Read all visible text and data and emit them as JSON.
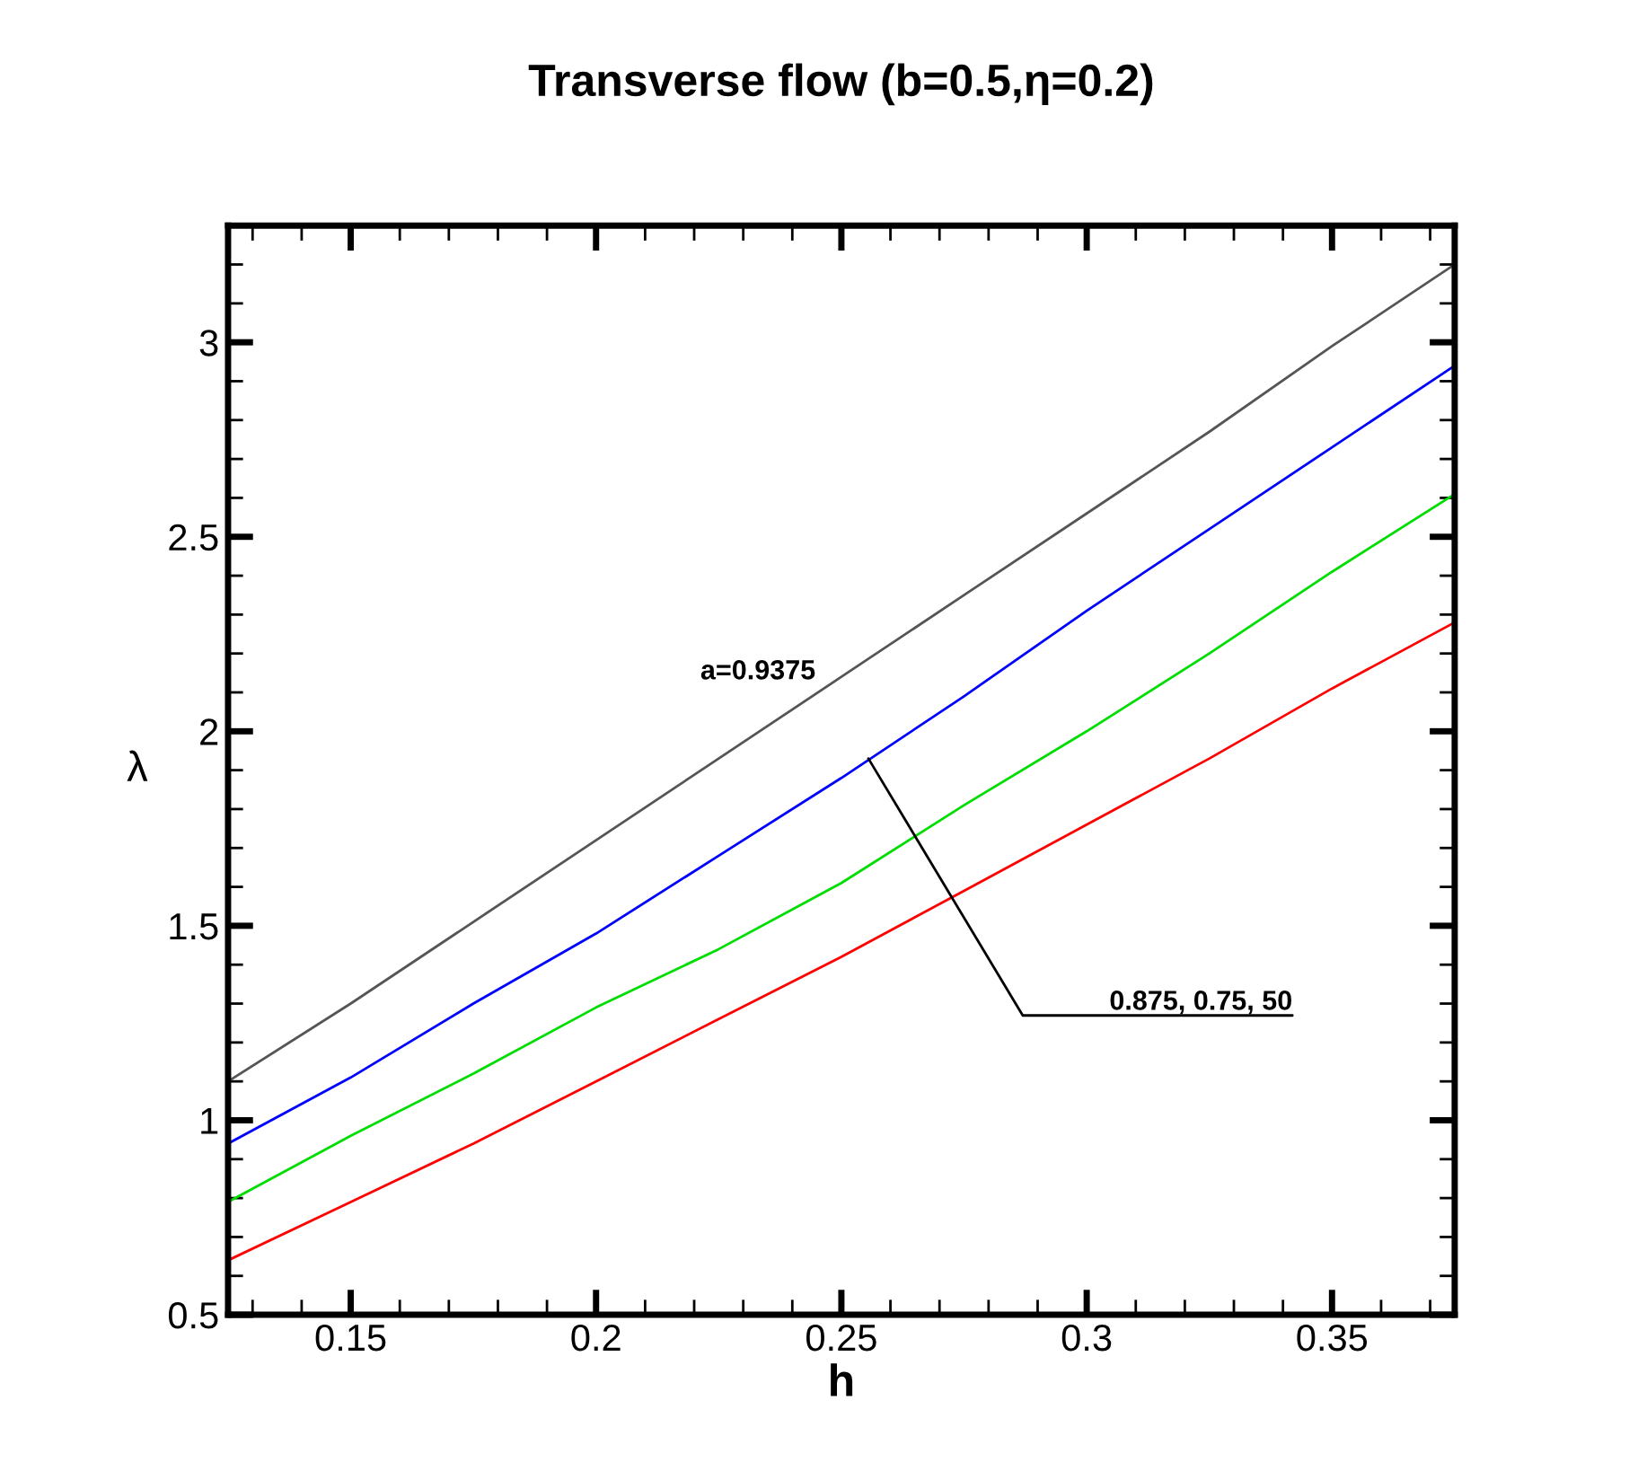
{
  "chart_data": {
    "type": "line",
    "title": "Transverse flow (b=0.5,η=0.2)",
    "xlabel": "h",
    "ylabel": "λ",
    "x": [
      0.125,
      0.15,
      0.175,
      0.2,
      0.225,
      0.25,
      0.275,
      0.3,
      0.325,
      0.35,
      0.375
    ],
    "series": [
      {
        "color": "#555555",
        "values": [
          1.1,
          1.3,
          1.51,
          1.72,
          1.93,
          2.14,
          2.35,
          2.56,
          2.77,
          2.99,
          3.2
        ]
      },
      {
        "color": "#0000ff",
        "values": [
          0.94,
          1.11,
          1.3,
          1.48,
          1.68,
          1.88,
          2.09,
          2.31,
          2.52,
          2.73,
          2.94
        ]
      },
      {
        "color": "#00dd00",
        "values": [
          0.79,
          0.96,
          1.12,
          1.29,
          1.44,
          1.61,
          1.81,
          2.0,
          2.2,
          2.41,
          2.61
        ]
      },
      {
        "color": "#ff0000",
        "values": [
          0.64,
          0.79,
          0.94,
          1.1,
          1.26,
          1.42,
          1.59,
          1.76,
          1.93,
          2.11,
          2.28
        ]
      }
    ],
    "annotations": [
      "a=0.9375",
      {
        "text": "0.875, 0.75, 50",
        "x": 0.2555,
        "y": 1.93
      }
    ],
    "xlim": [
      0.125,
      0.375
    ],
    "ylim": [
      0.5,
      3.3
    ],
    "xticks": [
      {
        "value": 0.13,
        "label": null
      },
      {
        "value": 0.14,
        "label": null
      },
      0.15,
      {
        "value": 0.16,
        "label": null
      },
      {
        "value": 0.17,
        "label": null
      },
      {
        "value": 0.18,
        "label": null
      },
      {
        "value": 0.19,
        "label": null
      },
      0.2,
      {
        "value": 0.21,
        "label": null
      },
      {
        "value": 0.22,
        "label": null
      },
      {
        "value": 0.23,
        "label": null
      },
      {
        "value": 0.24,
        "label": null
      },
      0.25,
      {
        "value": 0.26,
        "label": null
      },
      {
        "value": 0.27,
        "label": null
      },
      {
        "value": 0.28,
        "label": null
      },
      {
        "value": 0.29,
        "label": null
      },
      0.3,
      {
        "value": 0.31,
        "label": null
      },
      {
        "value": 0.32,
        "label": null
      },
      {
        "value": 0.33,
        "label": null
      },
      {
        "value": 0.34,
        "label": null
      },
      0.35,
      {
        "value": 0.36,
        "label": null
      },
      {
        "value": 0.37,
        "label": null
      }
    ],
    "yticks": [
      0.5,
      {
        "value": 0.6,
        "label": null
      },
      {
        "value": 0.7,
        "label": null
      },
      {
        "value": 0.8,
        "label": null
      },
      {
        "value": 0.9,
        "label": null
      },
      1,
      {
        "value": 1.1,
        "label": null
      },
      {
        "value": 1.2,
        "label": null
      },
      {
        "value": 1.3,
        "label": null
      },
      {
        "value": 1.4,
        "label": null
      },
      1.5,
      {
        "value": 1.6,
        "label": null
      },
      {
        "value": 1.7,
        "label": null
      },
      {
        "value": 1.8,
        "label": null
      },
      {
        "value": 1.9,
        "label": null
      },
      2,
      {
        "value": 2.1,
        "label": null
      },
      {
        "value": 2.2,
        "label": null
      },
      {
        "value": 2.3,
        "label": null
      },
      {
        "value": 2.4,
        "label": null
      },
      2.5,
      {
        "value": 2.6,
        "label": null
      },
      {
        "value": 2.7,
        "label": null
      },
      {
        "value": 2.8,
        "label": null
      },
      {
        "value": 2.9,
        "label": null
      },
      3,
      {
        "value": 3.1,
        "label": null
      },
      {
        "value": 3.2,
        "label": null
      }
    ],
    "grid": false,
    "marker": "none",
    "line_style": "solid"
  }
}
